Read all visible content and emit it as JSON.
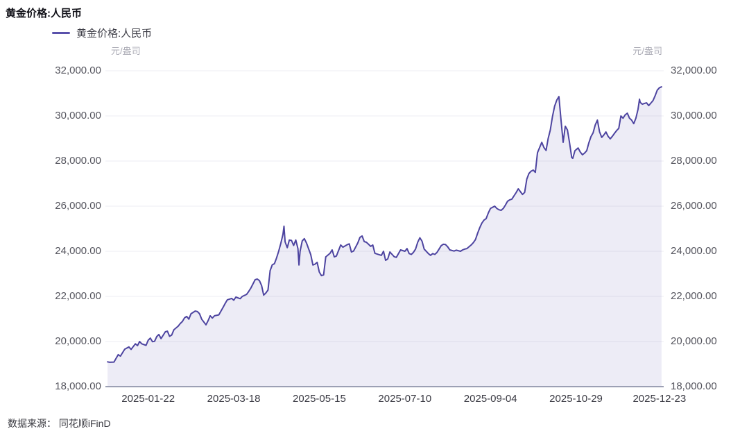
{
  "header": {
    "title": "黄金价格:人民币"
  },
  "legend": {
    "label": "黄金价格:人民币",
    "swatch_color": "#5a51ab"
  },
  "units": {
    "left": "元/盎司",
    "right": "元/盎司"
  },
  "footer": {
    "source": "数据来源： 同花顺iFinD"
  },
  "chart_data": {
    "type": "area",
    "title": "黄金价格:人民币",
    "ylabel": "元/盎司",
    "xlabel": "",
    "legend_position": "top-left",
    "grid": true,
    "line_color": "#4d44a0",
    "fill_color": "rgba(108,102,178,0.12)",
    "grid_color": "#ededf3",
    "axis_color": "#9ca0b4",
    "ylim": [
      18000,
      32000
    ],
    "xlim": [
      0,
      261
    ],
    "y_ticks": [
      {
        "v": 32000,
        "label": "32,000.00"
      },
      {
        "v": 30000,
        "label": "30,000.00"
      },
      {
        "v": 28000,
        "label": "28,000.00"
      },
      {
        "v": 26000,
        "label": "26,000.00"
      },
      {
        "v": 24000,
        "label": "24,000.00"
      },
      {
        "v": 22000,
        "label": "22,000.00"
      },
      {
        "v": 20000,
        "label": "20,000.00"
      },
      {
        "v": 18000,
        "label": "18,000.00"
      }
    ],
    "x_ticks": [
      {
        "t": 20,
        "label": "2025-01-22"
      },
      {
        "t": 60,
        "label": "2025-03-18"
      },
      {
        "t": 100,
        "label": "2025-05-15"
      },
      {
        "t": 140,
        "label": "2025-07-10"
      },
      {
        "t": 180,
        "label": "2025-09-04"
      },
      {
        "t": 220,
        "label": "2025-10-29"
      },
      {
        "t": 259,
        "label": "2025-12-23"
      }
    ],
    "points": [
      [
        1,
        19100
      ],
      [
        2,
        19080
      ],
      [
        4,
        19090
      ],
      [
        6,
        19420
      ],
      [
        7,
        19350
      ],
      [
        9,
        19660
      ],
      [
        11,
        19760
      ],
      [
        12,
        19650
      ],
      [
        14,
        19900
      ],
      [
        15,
        19820
      ],
      [
        16,
        20000
      ],
      [
        17,
        19900
      ],
      [
        19,
        19830
      ],
      [
        20,
        20060
      ],
      [
        21,
        20150
      ],
      [
        22,
        19990
      ],
      [
        23,
        20010
      ],
      [
        24,
        20220
      ],
      [
        25,
        20310
      ],
      [
        26,
        20130
      ],
      [
        28,
        20430
      ],
      [
        29,
        20460
      ],
      [
        30,
        20230
      ],
      [
        31,
        20290
      ],
      [
        32,
        20520
      ],
      [
        34,
        20680
      ],
      [
        35,
        20800
      ],
      [
        36,
        20890
      ],
      [
        37,
        21050
      ],
      [
        38,
        21110
      ],
      [
        39,
        20990
      ],
      [
        40,
        21230
      ],
      [
        42,
        21350
      ],
      [
        43,
        21330
      ],
      [
        44,
        21230
      ],
      [
        45,
        20990
      ],
      [
        47,
        20740
      ],
      [
        48,
        20920
      ],
      [
        49,
        21140
      ],
      [
        50,
        21040
      ],
      [
        51,
        21140
      ],
      [
        53,
        21180
      ],
      [
        55,
        21510
      ],
      [
        56,
        21690
      ],
      [
        57,
        21850
      ],
      [
        59,
        21910
      ],
      [
        60,
        21830
      ],
      [
        61,
        21970
      ],
      [
        63,
        21900
      ],
      [
        64,
        22000
      ],
      [
        66,
        22090
      ],
      [
        67,
        22220
      ],
      [
        68,
        22370
      ],
      [
        70,
        22740
      ],
      [
        71,
        22770
      ],
      [
        72,
        22700
      ],
      [
        73,
        22480
      ],
      [
        74,
        22060
      ],
      [
        75,
        22150
      ],
      [
        76,
        22280
      ],
      [
        77,
        23140
      ],
      [
        78,
        23400
      ],
      [
        79,
        23450
      ],
      [
        80,
        23700
      ],
      [
        81,
        24000
      ],
      [
        82,
        24350
      ],
      [
        83,
        24750
      ],
      [
        83.5,
        25110
      ],
      [
        84,
        24420
      ],
      [
        85,
        24160
      ],
      [
        86,
        24500
      ],
      [
        87,
        24480
      ],
      [
        88,
        24260
      ],
      [
        89,
        24500
      ],
      [
        90,
        24120
      ],
      [
        90.5,
        23390
      ],
      [
        91,
        24000
      ],
      [
        92,
        24460
      ],
      [
        93,
        24560
      ],
      [
        94,
        24370
      ],
      [
        96,
        23850
      ],
      [
        97,
        23390
      ],
      [
        98,
        23430
      ],
      [
        99,
        23510
      ],
      [
        100,
        23080
      ],
      [
        101,
        22920
      ],
      [
        102,
        22950
      ],
      [
        103,
        23750
      ],
      [
        105,
        23910
      ],
      [
        106,
        24060
      ],
      [
        107,
        23750
      ],
      [
        108,
        23790
      ],
      [
        110,
        24280
      ],
      [
        111,
        24180
      ],
      [
        113,
        24290
      ],
      [
        114,
        24330
      ],
      [
        115,
        23970
      ],
      [
        116,
        24010
      ],
      [
        118,
        24370
      ],
      [
        119,
        24615
      ],
      [
        120,
        24680
      ],
      [
        121,
        24430
      ],
      [
        122,
        24400
      ],
      [
        123,
        24310
      ],
      [
        124,
        24220
      ],
      [
        125,
        24280
      ],
      [
        126,
        23910
      ],
      [
        128,
        23850
      ],
      [
        129,
        23820
      ],
      [
        130,
        24000
      ],
      [
        131,
        23600
      ],
      [
        132,
        23660
      ],
      [
        133,
        23970
      ],
      [
        135,
        23760
      ],
      [
        136,
        23730
      ],
      [
        138,
        24060
      ],
      [
        140,
        24000
      ],
      [
        141,
        24120
      ],
      [
        142,
        23900
      ],
      [
        143,
        23860
      ],
      [
        144,
        23950
      ],
      [
        145,
        24100
      ],
      [
        146,
        24400
      ],
      [
        147,
        24600
      ],
      [
        148,
        24450
      ],
      [
        149,
        24100
      ],
      [
        151,
        23900
      ],
      [
        152,
        23820
      ],
      [
        153,
        23900
      ],
      [
        154,
        23860
      ],
      [
        155,
        23950
      ],
      [
        156,
        24100
      ],
      [
        157,
        24250
      ],
      [
        158,
        24310
      ],
      [
        159,
        24300
      ],
      [
        160,
        24200
      ],
      [
        161,
        24060
      ],
      [
        163,
        24010
      ],
      [
        164,
        24050
      ],
      [
        166,
        24000
      ],
      [
        167,
        24060
      ],
      [
        168,
        24100
      ],
      [
        169,
        24120
      ],
      [
        170,
        24200
      ],
      [
        171,
        24280
      ],
      [
        172,
        24380
      ],
      [
        173,
        24520
      ],
      [
        174,
        24800
      ],
      [
        175,
        25050
      ],
      [
        176,
        25250
      ],
      [
        177,
        25380
      ],
      [
        178,
        25450
      ],
      [
        179,
        25700
      ],
      [
        180,
        25900
      ],
      [
        181,
        25950
      ],
      [
        182,
        26000
      ],
      [
        183,
        25900
      ],
      [
        184,
        25840
      ],
      [
        185,
        25815
      ],
      [
        186,
        25900
      ],
      [
        187,
        26050
      ],
      [
        188,
        26215
      ],
      [
        189,
        26280
      ],
      [
        190,
        26310
      ],
      [
        192,
        26600
      ],
      [
        193,
        26770
      ],
      [
        195,
        26520
      ],
      [
        196,
        26610
      ],
      [
        197,
        27200
      ],
      [
        198,
        27450
      ],
      [
        199,
        27550
      ],
      [
        200,
        27600
      ],
      [
        201,
        27500
      ],
      [
        202,
        28370
      ],
      [
        203,
        28600
      ],
      [
        204,
        28830
      ],
      [
        205,
        28600
      ],
      [
        206,
        28470
      ],
      [
        207,
        29000
      ],
      [
        208,
        29380
      ],
      [
        209,
        29970
      ],
      [
        210,
        30430
      ],
      [
        211,
        30700
      ],
      [
        212,
        30860
      ],
      [
        213,
        29800
      ],
      [
        214,
        28830
      ],
      [
        214.5,
        29200
      ],
      [
        215,
        29540
      ],
      [
        216,
        29380
      ],
      [
        217,
        28800
      ],
      [
        218,
        28150
      ],
      [
        218.5,
        28120
      ],
      [
        219.5,
        28460
      ],
      [
        221,
        28580
      ],
      [
        222,
        28400
      ],
      [
        223,
        28280
      ],
      [
        224,
        28350
      ],
      [
        225,
        28460
      ],
      [
        226,
        28800
      ],
      [
        227,
        29080
      ],
      [
        228,
        29250
      ],
      [
        229,
        29600
      ],
      [
        230,
        29815
      ],
      [
        231,
        29300
      ],
      [
        232,
        29050
      ],
      [
        233,
        29150
      ],
      [
        234,
        29290
      ],
      [
        235,
        29100
      ],
      [
        236,
        28985
      ],
      [
        237,
        29100
      ],
      [
        238,
        29230
      ],
      [
        239,
        29350
      ],
      [
        240,
        29450
      ],
      [
        241,
        30000
      ],
      [
        242,
        29900
      ],
      [
        243,
        30050
      ],
      [
        244,
        30120
      ],
      [
        245,
        29900
      ],
      [
        246,
        29815
      ],
      [
        247,
        29660
      ],
      [
        248,
        29900
      ],
      [
        249,
        30300
      ],
      [
        249.7,
        30740
      ],
      [
        250,
        30600
      ],
      [
        251,
        30520
      ],
      [
        252,
        30550
      ],
      [
        253,
        30580
      ],
      [
        254,
        30460
      ],
      [
        255,
        30570
      ],
      [
        256,
        30680
      ],
      [
        257,
        30900
      ],
      [
        258,
        31140
      ],
      [
        259,
        31250
      ],
      [
        260,
        31290
      ]
    ]
  }
}
